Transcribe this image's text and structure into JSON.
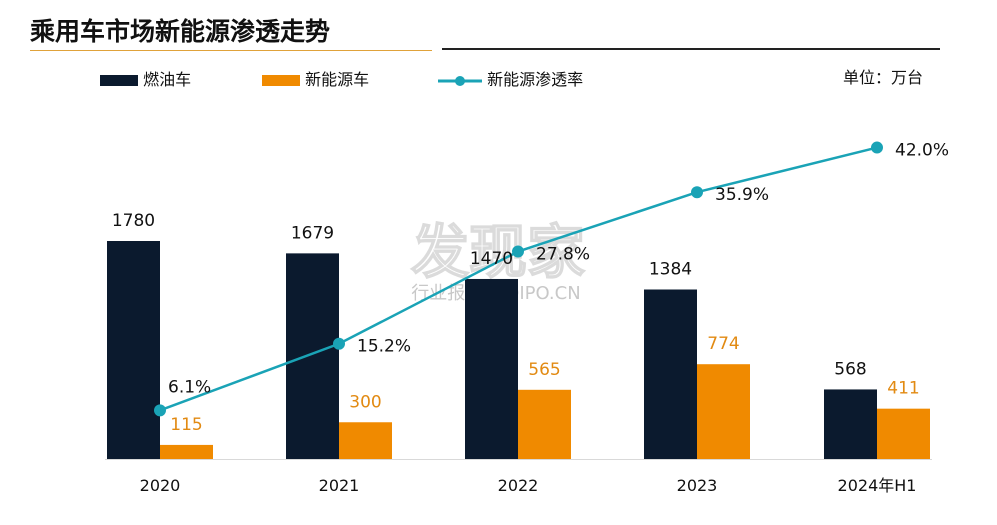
{
  "title": "乘用车市场新能源渗透走势",
  "unit": "单位：万台",
  "watermark": {
    "main": "发现家",
    "sub": "行业报告 IPOIPO.CN"
  },
  "colors": {
    "fuel": "#0b1a2e",
    "nev": "#f08a00",
    "rate": "#1aa3b6",
    "nev_label": "#e28a12"
  },
  "chart_data": {
    "type": "bar",
    "categories": [
      "2020",
      "2021",
      "2022",
      "2023",
      "2024年H1"
    ],
    "series": [
      {
        "name": "燃油车",
        "type": "bar",
        "values": [
          1780,
          1679,
          1470,
          1384,
          568
        ]
      },
      {
        "name": "新能源车",
        "type": "bar",
        "values": [
          115,
          300,
          565,
          774,
          411
        ]
      },
      {
        "name": "新能源渗透率",
        "type": "line",
        "values": [
          6.1,
          15.2,
          27.8,
          35.9,
          42.0
        ],
        "labels": [
          "6.1%",
          "15.2%",
          "27.8%",
          "35.9%",
          "42.0%"
        ]
      }
    ],
    "ylim": [
      0,
      1800
    ],
    "y2lim": [
      0,
      50
    ],
    "legend": "top-left"
  }
}
